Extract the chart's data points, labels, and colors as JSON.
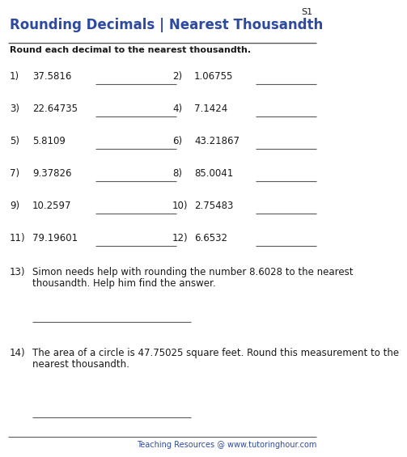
{
  "title": "Rounding Decimals | Nearest Thousandth",
  "title_color": "#2e4a9e",
  "instruction": "Round each decimal to the nearest thousandth.",
  "s1_label": "S1",
  "problems": [
    {
      "num": "1)",
      "val": "37.5816"
    },
    {
      "num": "2)",
      "val": "1.06755"
    },
    {
      "num": "3)",
      "val": "22.64735"
    },
    {
      "num": "4)",
      "val": "7.1424"
    },
    {
      "num": "5)",
      "val": "5.8109"
    },
    {
      "num": "6)",
      "val": "43.21867"
    },
    {
      "num": "7)",
      "val": "9.37826"
    },
    {
      "num": "8)",
      "val": "85.0041"
    },
    {
      "num": "9)",
      "val": "10.2597"
    },
    {
      "num": "10)",
      "val": "2.75483"
    },
    {
      "num": "11)",
      "val": "79.19601"
    },
    {
      "num": "12)",
      "val": "6.6532"
    }
  ],
  "word_problem_13_num": "13)",
  "word_problem_13_line1": "Simon needs help with rounding the number 8.6028 to the nearest",
  "word_problem_13_line2": "thousandth. Help him find the answer.",
  "word_problem_14_num": "14)",
  "word_problem_14_line1": "The area of a circle is 47.75025 square feet. Round this measurement to the",
  "word_problem_14_line2": "nearest thousandth.",
  "footer_plain": "Teaching Resources @ ",
  "footer_link": "www.tutoringhour.com",
  "bg_color": "#ffffff",
  "title_line_color": "#5a5a5a",
  "text_color": "#1a1a1a",
  "answer_line_color": "#5a5a5a",
  "footer_plain_color": "#1a1a1a",
  "footer_link_color": "#2e4a9e",
  "bottom_line_color": "#5a5a5a"
}
